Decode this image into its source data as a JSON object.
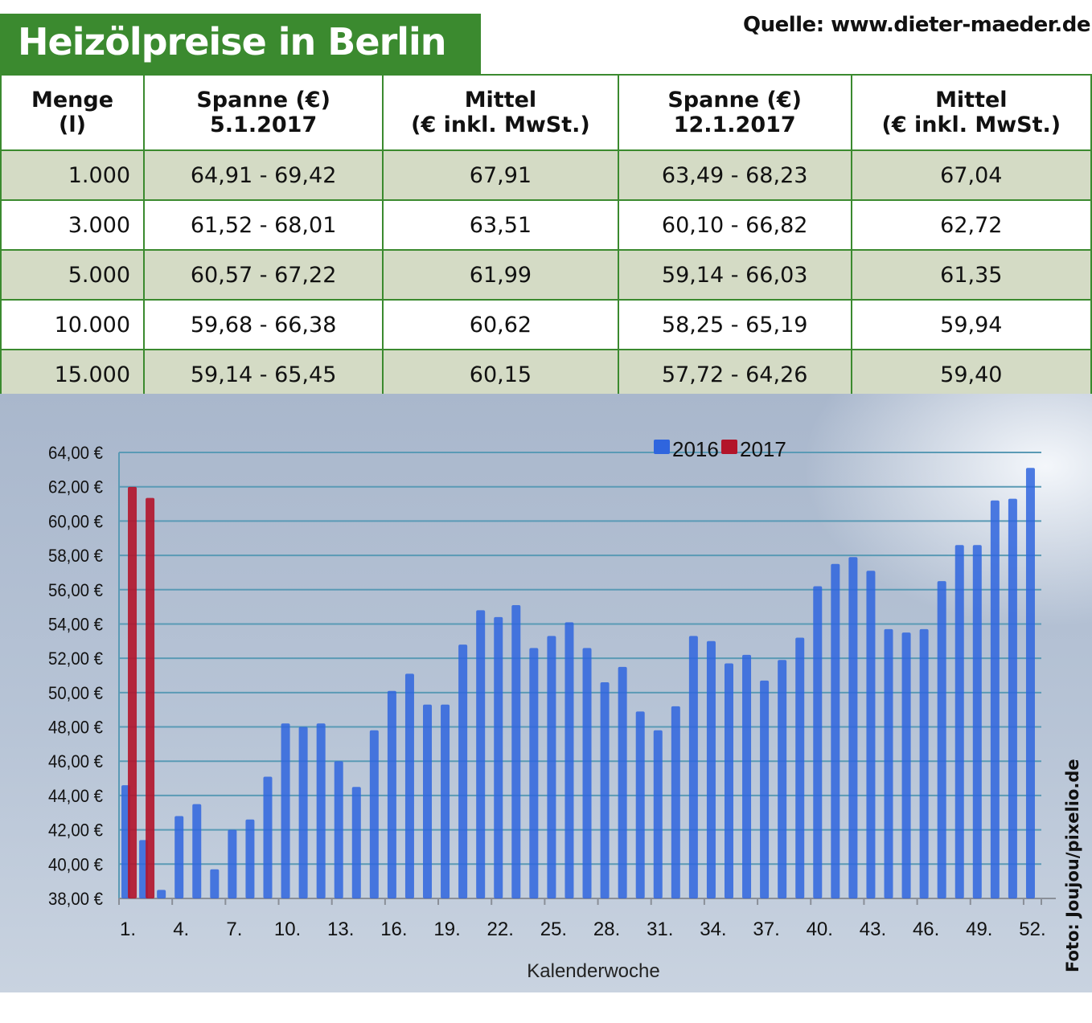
{
  "title": "Heizölpreise in Berlin",
  "source": "Quelle: www.dieter-maeder.de",
  "credit": "Foto: Joujou/pixelio.de",
  "table": {
    "headers": [
      [
        "Menge",
        "(l)"
      ],
      [
        "Spanne (€)",
        "5.1.2017"
      ],
      [
        "Mittel",
        "(€ inkl. MwSt.)"
      ],
      [
        "Spanne (€)",
        "12.1.2017"
      ],
      [
        "Mittel",
        "(€ inkl. MwSt.)"
      ]
    ],
    "rows": [
      [
        "1.000",
        "64,91 - 69,42",
        "67,91",
        "63,49 - 68,23",
        "67,04"
      ],
      [
        "3.000",
        "61,52 - 68,01",
        "63,51",
        "60,10 - 66,82",
        "62,72"
      ],
      [
        "5.000",
        "60,57 - 67,22",
        "61,99",
        "59,14 - 66,03",
        "61,35"
      ],
      [
        "10.000",
        "59,68 - 66,38",
        "60,62",
        "58,25 - 65,19",
        "59,94"
      ],
      [
        "15.000",
        "59,14 - 65,45",
        "60,15",
        "57,72 - 64,26",
        "59,40"
      ]
    ]
  },
  "chart_data": {
    "type": "bar",
    "xlabel": "Kalenderwoche",
    "ylabel": "",
    "ylim": [
      38,
      64
    ],
    "yticks": [
      "38,00 €",
      "40,00 €",
      "42,00 €",
      "44,00 €",
      "46,00 €",
      "48,00 €",
      "50,00 €",
      "52,00 €",
      "54,00 €",
      "56,00 €",
      "58,00 €",
      "60,00 €",
      "62,00 €",
      "64,00 €"
    ],
    "xticks": [
      "1.",
      "4.",
      "7.",
      "10.",
      "13.",
      "16.",
      "19.",
      "22.",
      "25.",
      "28.",
      "31.",
      "34.",
      "37.",
      "40.",
      "43.",
      "46.",
      "49.",
      "52."
    ],
    "grid": true,
    "legend": "top-center",
    "series": [
      {
        "name": "2016",
        "color": "#2f65de",
        "values": [
          44.6,
          41.4,
          38.5,
          42.8,
          43.5,
          39.7,
          42.0,
          42.6,
          45.1,
          48.2,
          48.0,
          48.2,
          46.0,
          44.5,
          47.8,
          50.1,
          51.1,
          49.3,
          49.3,
          52.8,
          54.8,
          54.4,
          55.1,
          52.6,
          53.3,
          54.1,
          52.6,
          50.6,
          51.5,
          48.9,
          47.8,
          49.2,
          53.3,
          53.0,
          51.7,
          52.2,
          50.7,
          51.9,
          53.2,
          56.2,
          57.5,
          57.9,
          57.1,
          53.7,
          53.5,
          53.7,
          56.5,
          58.6,
          58.6,
          61.2,
          61.3,
          63.1
        ]
      },
      {
        "name": "2017",
        "color": "#b3142a",
        "values": [
          61.99,
          61.35
        ]
      }
    ]
  }
}
